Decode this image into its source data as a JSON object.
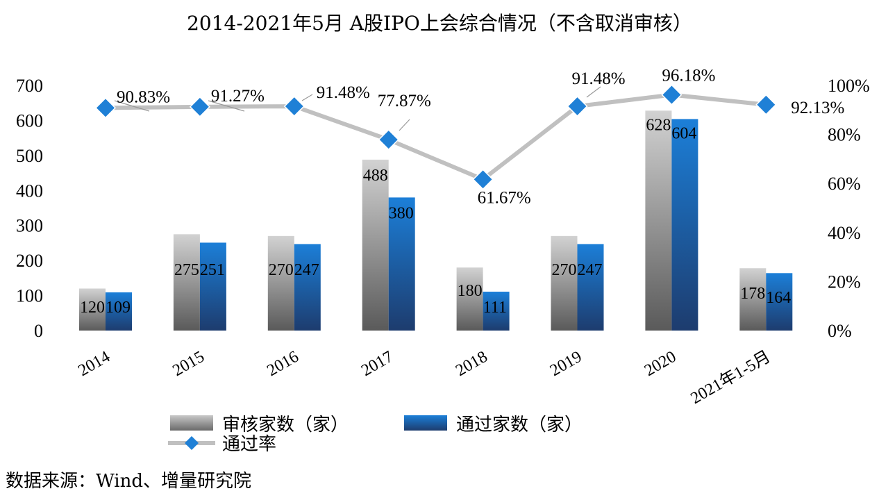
{
  "chart_data": {
    "type": "bar+line",
    "title": "2014-2021年5月 A股IPO上会综合情况（不含取消审核）",
    "categories": [
      "2014",
      "2015",
      "2016",
      "2017",
      "2018",
      "2019",
      "2020",
      "2021年1-5月"
    ],
    "series": [
      {
        "name": "审核家数（家）",
        "type": "bar",
        "axis": "left",
        "color": "#9a9a9a",
        "values": [
          120,
          275,
          270,
          488,
          180,
          270,
          628,
          178
        ]
      },
      {
        "name": "通过家数（家）",
        "type": "bar",
        "axis": "left",
        "color": "#1a6fc4",
        "values": [
          109,
          251,
          247,
          380,
          111,
          247,
          604,
          164
        ]
      },
      {
        "name": "通过率",
        "type": "line",
        "axis": "right",
        "color": "#c0c0c0",
        "marker_color": "#1f80d6",
        "values": [
          90.83,
          91.27,
          91.48,
          77.87,
          61.67,
          91.48,
          96.18,
          92.13
        ],
        "labels": [
          "90.83%",
          "91.27%",
          "91.48%",
          "77.87%",
          "61.67%",
          "91.48%",
          "96.18%",
          "92.13%"
        ]
      }
    ],
    "ylim": [
      0,
      700
    ],
    "yticks": [
      "0",
      "100",
      "200",
      "300",
      "400",
      "500",
      "600",
      "700"
    ],
    "y2lim": [
      0,
      100
    ],
    "y2ticks": [
      "0%",
      "20%",
      "40%",
      "60%",
      "80%",
      "100%"
    ],
    "legend": "bottom",
    "grid": false
  },
  "source": "数据来源：Wind、增量研究院"
}
